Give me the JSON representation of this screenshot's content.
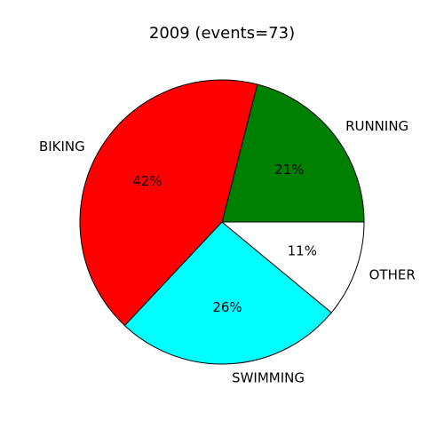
{
  "chart_data": {
    "type": "pie",
    "title": "2009 (events=73)",
    "categories": [
      "RUNNING",
      "BIKING",
      "SWIMMING",
      "OTHER"
    ],
    "values": [
      21,
      42,
      26,
      11
    ],
    "labels": [
      "21%",
      "42%",
      "26%",
      "11%"
    ],
    "colors": [
      "#008000",
      "#ff0000",
      "#00ffff",
      "#ffffff"
    ],
    "start_angle_deg": 0,
    "direction": "counterclockwise",
    "legend": "none"
  }
}
